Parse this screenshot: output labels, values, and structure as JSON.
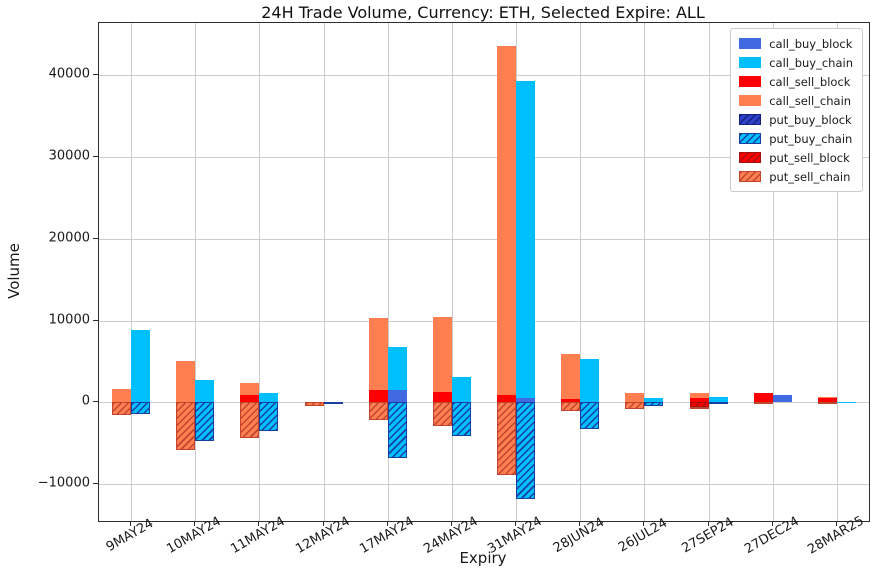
{
  "chart_data": {
    "type": "bar",
    "title": "24H Trade Volume, Currency: ETH, Selected Expire: ALL",
    "xlabel": "Expiry",
    "ylabel": "Volume",
    "grid": true,
    "legend_position": "upper right",
    "ylim": [
      -14500,
      46400
    ],
    "yticks": [
      -10000,
      0,
      10000,
      20000,
      30000,
      40000
    ],
    "categories": [
      "9MAY24",
      "10MAY24",
      "11MAY24",
      "12MAY24",
      "17MAY24",
      "24MAY24",
      "31MAY24",
      "28JUN24",
      "26JUL24",
      "27SEP24",
      "27DEC24",
      "28MAR25"
    ],
    "bar_layout": "two bars per expiry: left = sell stack (call above 0, put below 0), right = buy stack",
    "series": [
      {
        "name": "call_buy_block",
        "group": "buy",
        "color": "#4169E1",
        "hatch": false,
        "values": [
          0,
          0,
          0,
          0,
          1500,
          0,
          500,
          0,
          0,
          0,
          900,
          0
        ]
      },
      {
        "name": "call_buy_chain",
        "group": "buy",
        "color": "#00BFFF",
        "hatch": false,
        "values": [
          8900,
          2700,
          1200,
          0,
          5300,
          3100,
          38800,
          5300,
          500,
          700,
          0,
          100
        ]
      },
      {
        "name": "call_sell_block",
        "group": "sell",
        "color": "#FF0000",
        "hatch": false,
        "values": [
          0,
          0,
          900,
          0,
          1500,
          1300,
          900,
          400,
          0,
          500,
          1100,
          600
        ]
      },
      {
        "name": "call_sell_chain",
        "group": "sell",
        "color": "#FF7F50",
        "hatch": false,
        "values": [
          1600,
          5100,
          1500,
          0,
          8800,
          9100,
          42700,
          5500,
          1100,
          600,
          0,
          100
        ]
      },
      {
        "name": "put_buy_block",
        "group": "buy",
        "color": "#2E41C8",
        "hatch": true,
        "hatch_color": "#16207F",
        "values": [
          0,
          0,
          0,
          0,
          0,
          0,
          0,
          0,
          0,
          0,
          0,
          0
        ]
      },
      {
        "name": "put_buy_chain",
        "group": "buy",
        "color": "#00BFFF",
        "hatch": true,
        "hatch_color": "#1A3FA0",
        "values": [
          -1400,
          -4700,
          -3500,
          -100,
          -6800,
          -4100,
          -11800,
          -3200,
          -400,
          -200,
          0,
          0
        ]
      },
      {
        "name": "put_sell_block",
        "group": "sell",
        "color": "#FF0000",
        "hatch": true,
        "hatch_color": "#A51010",
        "values": [
          0,
          0,
          0,
          0,
          0,
          0,
          0,
          0,
          0,
          -500,
          0,
          0
        ]
      },
      {
        "name": "put_sell_chain",
        "group": "sell",
        "color": "#FF7F50",
        "hatch": true,
        "hatch_color": "#C0452F",
        "values": [
          -1500,
          -5800,
          -4400,
          -400,
          -2100,
          -2900,
          -8900,
          -1000,
          -800,
          -200,
          -200,
          -100
        ]
      }
    ]
  }
}
